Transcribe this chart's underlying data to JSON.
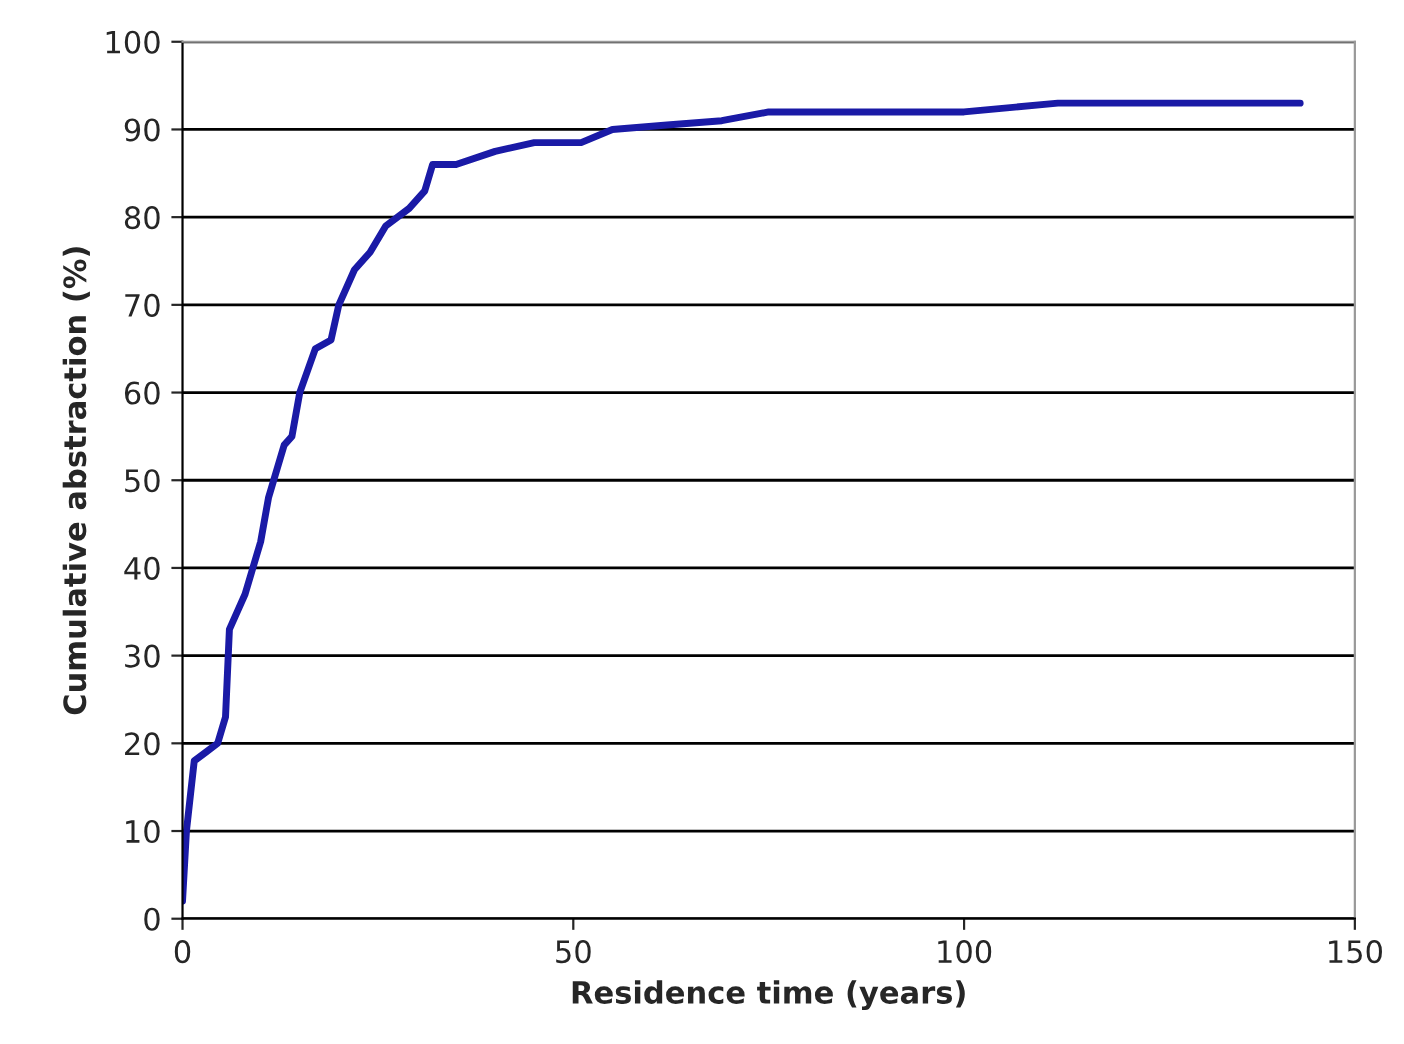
{
  "chart_data": {
    "type": "line",
    "xlabel": "Residence time (years)",
    "ylabel": "Cumulative abstraction (%)",
    "series": [
      {
        "color": "#1a1aa6",
        "x": [
          0,
          0.5,
          1,
          1.5,
          3,
          4.5,
          5.5,
          6,
          8,
          10,
          11,
          13,
          14,
          15,
          17,
          19,
          20,
          22,
          24,
          26,
          29,
          31,
          32,
          35,
          40,
          45,
          51,
          55,
          62,
          69,
          75,
          100,
          112,
          143
        ],
        "values": [
          2,
          10,
          14,
          18,
          19,
          20,
          23,
          33,
          37,
          43,
          48,
          54,
          55,
          60,
          65,
          66,
          70,
          74,
          76,
          79,
          81,
          83,
          86,
          86,
          87.5,
          88.5,
          88.5,
          90,
          90.5,
          91,
          92,
          92,
          93,
          93
        ]
      }
    ],
    "xlim": [
      0,
      150
    ],
    "xticks": [
      0,
      50,
      100,
      150
    ],
    "ylim": [
      0,
      100
    ],
    "yticks": [
      0,
      10,
      20,
      30,
      40,
      50,
      60,
      70,
      80,
      90,
      100
    ],
    "grid": "y",
    "line_style": "solid"
  }
}
